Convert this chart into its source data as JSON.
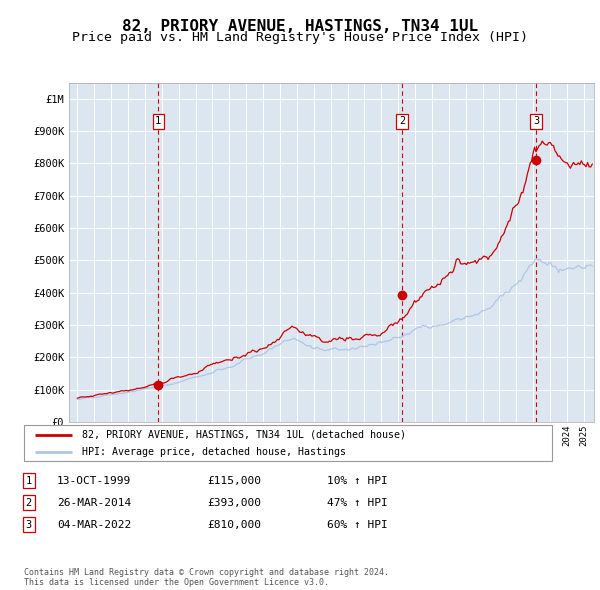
{
  "title": "82, PRIORY AVENUE, HASTINGS, TN34 1UL",
  "subtitle": "Price paid vs. HM Land Registry's House Price Index (HPI)",
  "title_fontsize": 11.5,
  "subtitle_fontsize": 9.5,
  "background_color": "#dce6f1",
  "fig_background": "#ffffff",
  "ylabel_ticks": [
    "£0",
    "£100K",
    "£200K",
    "£300K",
    "£400K",
    "£500K",
    "£600K",
    "£700K",
    "£800K",
    "£900K",
    "£1M"
  ],
  "ytick_values": [
    0,
    100000,
    200000,
    300000,
    400000,
    500000,
    600000,
    700000,
    800000,
    900000,
    1000000
  ],
  "ylim": [
    0,
    1050000
  ],
  "xlim_start": 1994.5,
  "xlim_end": 2025.6,
  "sale1_x": 1999.79,
  "sale1_y": 115000,
  "sale1_label": "1",
  "sale2_x": 2014.23,
  "sale2_y": 393000,
  "sale2_label": "2",
  "sale3_x": 2022.17,
  "sale3_y": 810000,
  "sale3_label": "3",
  "legend_line1": "82, PRIORY AVENUE, HASTINGS, TN34 1UL (detached house)",
  "legend_line2": "HPI: Average price, detached house, Hastings",
  "table_data": [
    [
      "1",
      "13-OCT-1999",
      "£115,000",
      "10% ↑ HPI"
    ],
    [
      "2",
      "26-MAR-2014",
      "£393,000",
      "47% ↑ HPI"
    ],
    [
      "3",
      "04-MAR-2022",
      "£810,000",
      "60% ↑ HPI"
    ]
  ],
  "footer": "Contains HM Land Registry data © Crown copyright and database right 2024.\nThis data is licensed under the Open Government Licence v3.0.",
  "hpi_line_color": "#aec6e8",
  "price_line_color": "#cc0000",
  "dot_color": "#cc0000",
  "vline_color": "#cc0000",
  "grid_color": "#ffffff",
  "box_color": "#cc0000"
}
